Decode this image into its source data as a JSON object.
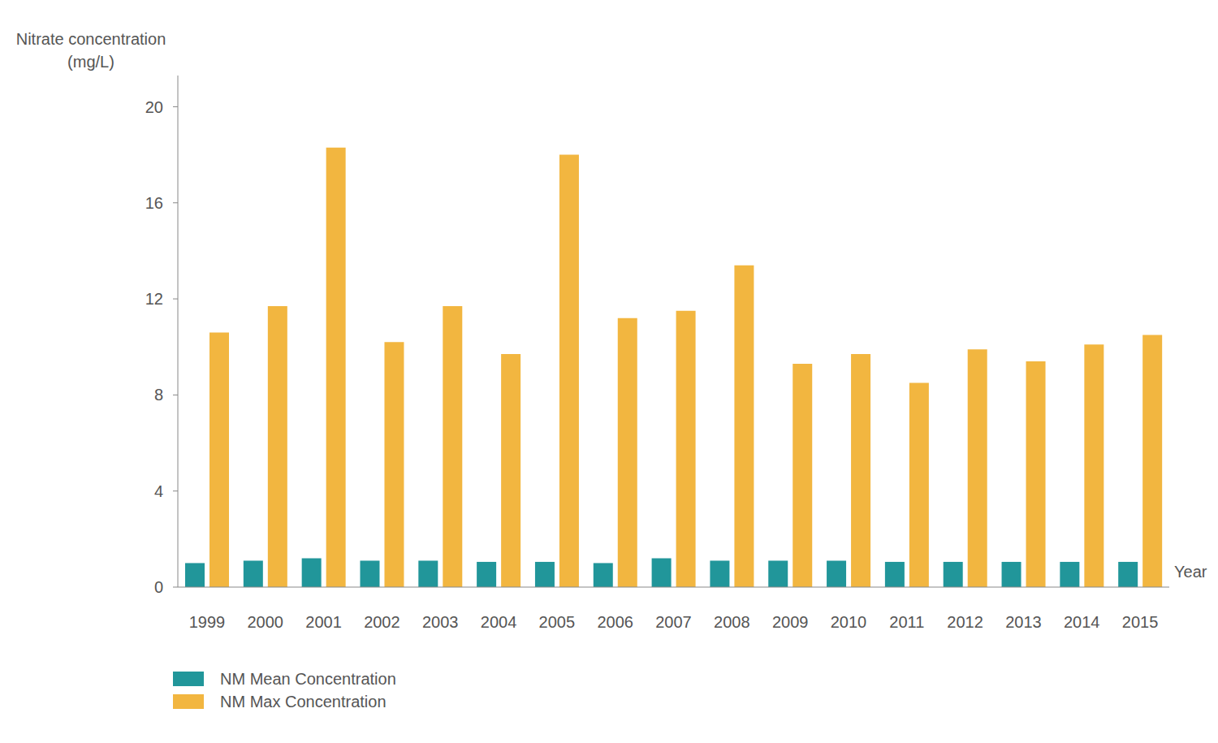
{
  "chart_data": {
    "type": "bar",
    "y_label": "Nitrate concentration (mg/L)",
    "x_label": "Year",
    "categories": [
      "1999",
      "2000",
      "2001",
      "2002",
      "2003",
      "2004",
      "2005",
      "2006",
      "2007",
      "2008",
      "2009",
      "2010",
      "2011",
      "2012",
      "2013",
      "2014",
      "2015"
    ],
    "series": [
      {
        "name": "NM Mean Concentration",
        "color": "#21969a",
        "values": [
          1.0,
          1.1,
          1.2,
          1.1,
          1.1,
          1.05,
          1.05,
          1.0,
          1.2,
          1.1,
          1.1,
          1.1,
          1.05,
          1.05,
          1.05,
          1.05,
          1.05
        ]
      },
      {
        "name": "NM Max Concentration",
        "color": "#f2b640",
        "values": [
          10.6,
          11.7,
          18.3,
          10.2,
          11.7,
          9.7,
          18.0,
          11.2,
          11.5,
          13.4,
          9.3,
          9.7,
          8.5,
          9.9,
          9.4,
          10.1,
          10.5
        ]
      }
    ],
    "ylim": [
      0,
      21.3
    ],
    "yticks": [
      0,
      4,
      8,
      12,
      16,
      20
    ],
    "grid": false,
    "legend": "lower left"
  }
}
